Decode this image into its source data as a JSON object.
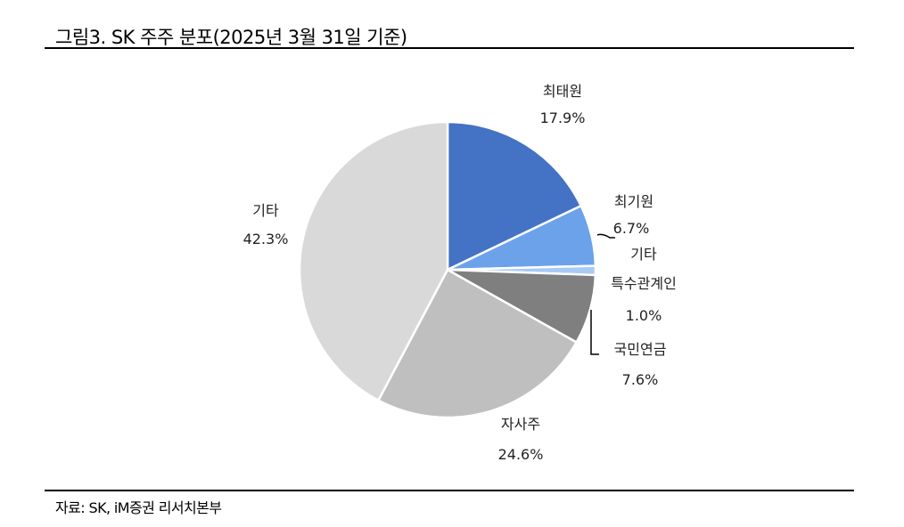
{
  "header": {
    "title": "그림3. SK 주주 분포(2025년 3월 31일 기준)"
  },
  "footer": {
    "source": "자료: SK, iM증권 리서치본부"
  },
  "chart_data": {
    "type": "pie",
    "title": "그림3. SK 주주 분포(2025년 3월 31일 기준)",
    "start_angle": "12 o'clock, clockwise",
    "categories": [
      "최태원",
      "최기원",
      "기타 특수관계인",
      "국민연금",
      "자사주",
      "기타"
    ],
    "values": [
      17.9,
      6.7,
      1.0,
      7.6,
      24.6,
      42.3
    ],
    "unit": "%",
    "colors": [
      "#4472C4",
      "#6CA2EA",
      "#A9CBF3",
      "#7F7F7F",
      "#BFBFBF",
      "#D9D9D9"
    ],
    "labels": [
      {
        "name": "최태원",
        "value": "17.9%"
      },
      {
        "name": "최기원",
        "value": "6.7%"
      },
      {
        "name_line1": "기타",
        "name_line2": "특수관계인",
        "value": "1.0%"
      },
      {
        "name": "국민연금",
        "value": "7.6%"
      },
      {
        "name": "자사주",
        "value": "24.6%"
      },
      {
        "name": "기타",
        "value": "42.3%"
      }
    ],
    "legend": "none (data labels outside slices)"
  }
}
